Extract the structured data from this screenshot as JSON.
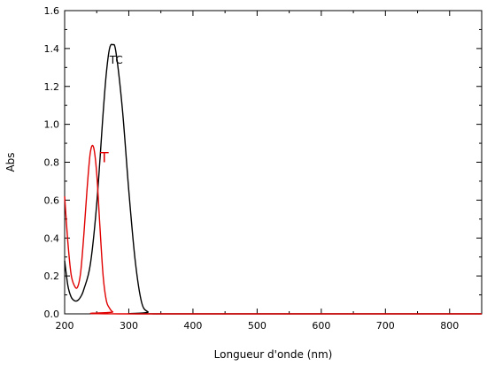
{
  "chart_data": {
    "type": "line",
    "xlabel": "Longueur d'onde (nm)",
    "ylabel": "Abs",
    "xlim": [
      200,
      850
    ],
    "ylim": [
      0,
      1.6
    ],
    "x_ticks": [
      200,
      300,
      400,
      500,
      600,
      700,
      800
    ],
    "y_ticks": [
      0.0,
      0.2,
      0.4,
      0.6,
      0.8,
      1.0,
      1.2,
      1.4,
      1.6
    ],
    "x_tick_labels": [
      "200",
      "300",
      "400",
      "500",
      "600",
      "700",
      "800"
    ],
    "y_tick_labels": [
      "0.0",
      "0.2",
      "0.4",
      "0.6",
      "0.8",
      "1.0",
      "1.2",
      "1.4",
      "1.6"
    ],
    "grid": false,
    "series": [
      {
        "name": "TC",
        "color": "#000000",
        "label_at": [
          270,
          1.32
        ],
        "points": [
          [
            200,
            0.28
          ],
          [
            205,
            0.15
          ],
          [
            210,
            0.09
          ],
          [
            215,
            0.07
          ],
          [
            220,
            0.07
          ],
          [
            225,
            0.09
          ],
          [
            230,
            0.13
          ],
          [
            240,
            0.26
          ],
          [
            250,
            0.58
          ],
          [
            260,
            1.06
          ],
          [
            265,
            1.27
          ],
          [
            270,
            1.4
          ],
          [
            275,
            1.42
          ],
          [
            280,
            1.38
          ],
          [
            290,
            1.08
          ],
          [
            300,
            0.65
          ],
          [
            310,
            0.28
          ],
          [
            320,
            0.06
          ],
          [
            330,
            0.01
          ],
          [
            340,
            0.0
          ],
          [
            850,
            0.0
          ]
        ]
      },
      {
        "name": "T",
        "color": "#e00000",
        "label_at": [
          255,
          0.8
        ],
        "points": [
          [
            200,
            0.62
          ],
          [
            205,
            0.38
          ],
          [
            210,
            0.21
          ],
          [
            215,
            0.15
          ],
          [
            220,
            0.14
          ],
          [
            225,
            0.22
          ],
          [
            230,
            0.42
          ],
          [
            235,
            0.66
          ],
          [
            240,
            0.85
          ],
          [
            245,
            0.88
          ],
          [
            250,
            0.74
          ],
          [
            255,
            0.46
          ],
          [
            260,
            0.2
          ],
          [
            265,
            0.07
          ],
          [
            270,
            0.03
          ],
          [
            275,
            0.01
          ],
          [
            285,
            0.0
          ],
          [
            850,
            0.0
          ]
        ]
      }
    ]
  }
}
